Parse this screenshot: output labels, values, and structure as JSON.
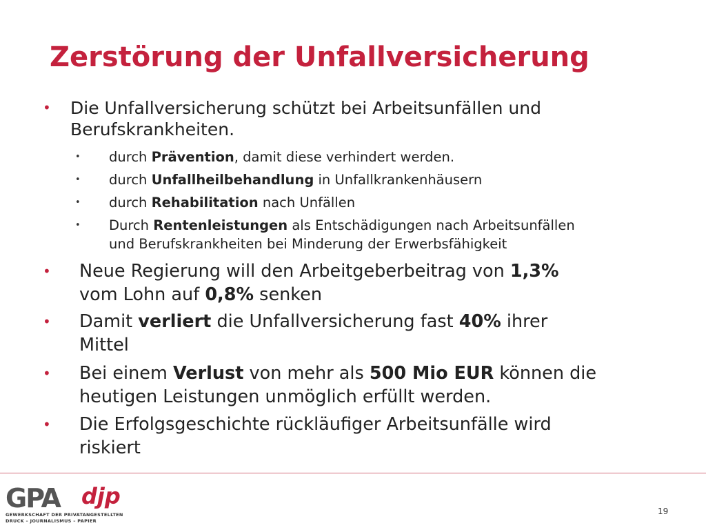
{
  "title": "Zerstörung der Unfallversicherung",
  "intro_bullet": {
    "lines": [
      [
        {
          "text": "Die Unfallversicherung schützt bei Arbeitsunfällen und"
        }
      ],
      [
        {
          "text": "Berufskrankheiten."
        }
      ]
    ]
  },
  "sub_bullets": [
    {
      "lines": [
        [
          {
            "text": "durch "
          },
          {
            "text": "Prävention",
            "bold": true
          },
          {
            "text": ", damit diese verhindert werden."
          }
        ]
      ]
    },
    {
      "lines": [
        [
          {
            "text": "durch "
          },
          {
            "text": "Unfallheilbehandlung",
            "bold": true
          },
          {
            "text": " in Unfallkrankenhäusern"
          }
        ]
      ]
    },
    {
      "lines": [
        [
          {
            "text": "durch "
          },
          {
            "text": "Rehabilitation",
            "bold": true
          },
          {
            "text": " nach Unfällen"
          }
        ]
      ]
    },
    {
      "lines": [
        [
          {
            "text": "Durch "
          },
          {
            "text": "Rentenleistungen",
            "bold": true
          },
          {
            "text": " als Entschädigungen nach Arbeitsunfällen"
          }
        ],
        [
          {
            "text": "und Berufskrankheiten bei Minderung der Erwerbsfähigkeit"
          }
        ]
      ]
    }
  ],
  "main_bullets": [
    {
      "lines": [
        [
          {
            "text": "Neue Regierung will den Arbeitgeberbeitrag von "
          },
          {
            "text": "1,3%",
            "bold": true
          }
        ],
        [
          {
            "text": "vom Lohn auf "
          },
          {
            "text": "0,8%",
            "bold": true
          },
          {
            "text": " senken"
          }
        ]
      ]
    },
    {
      "lines": [
        [
          {
            "text": "Damit "
          },
          {
            "text": "verliert",
            "bold": true
          },
          {
            "text": " die Unfallversicherung fast "
          },
          {
            "text": "40%",
            "bold": true
          },
          {
            "text": " ihrer"
          }
        ],
        [
          {
            "text": "Mittel"
          }
        ]
      ]
    },
    {
      "lines": [
        [
          {
            "text": "Bei einem "
          },
          {
            "text": "Verlust",
            "bold": true
          },
          {
            "text": " von mehr als "
          },
          {
            "text": "500 Mio EUR",
            "bold": true
          },
          {
            "text": " können die"
          }
        ],
        [
          {
            "text": "heutigen Leistungen unmöglich erfüllt werden."
          }
        ]
      ]
    },
    {
      "lines": [
        [
          {
            "text": "Die Erfolgsgeschichte rückläufiger Arbeitsunfälle wird"
          }
        ],
        [
          {
            "text": "riskiert"
          }
        ]
      ]
    }
  ],
  "logo": {
    "gpa": "GPA",
    "djp": "djp",
    "line1": "GEWERKSCHAFT DER PRIVATANGESTELLTEN",
    "line2": "DRUCK – JOURNALISMUS – PAPIER"
  },
  "page_number": "19"
}
